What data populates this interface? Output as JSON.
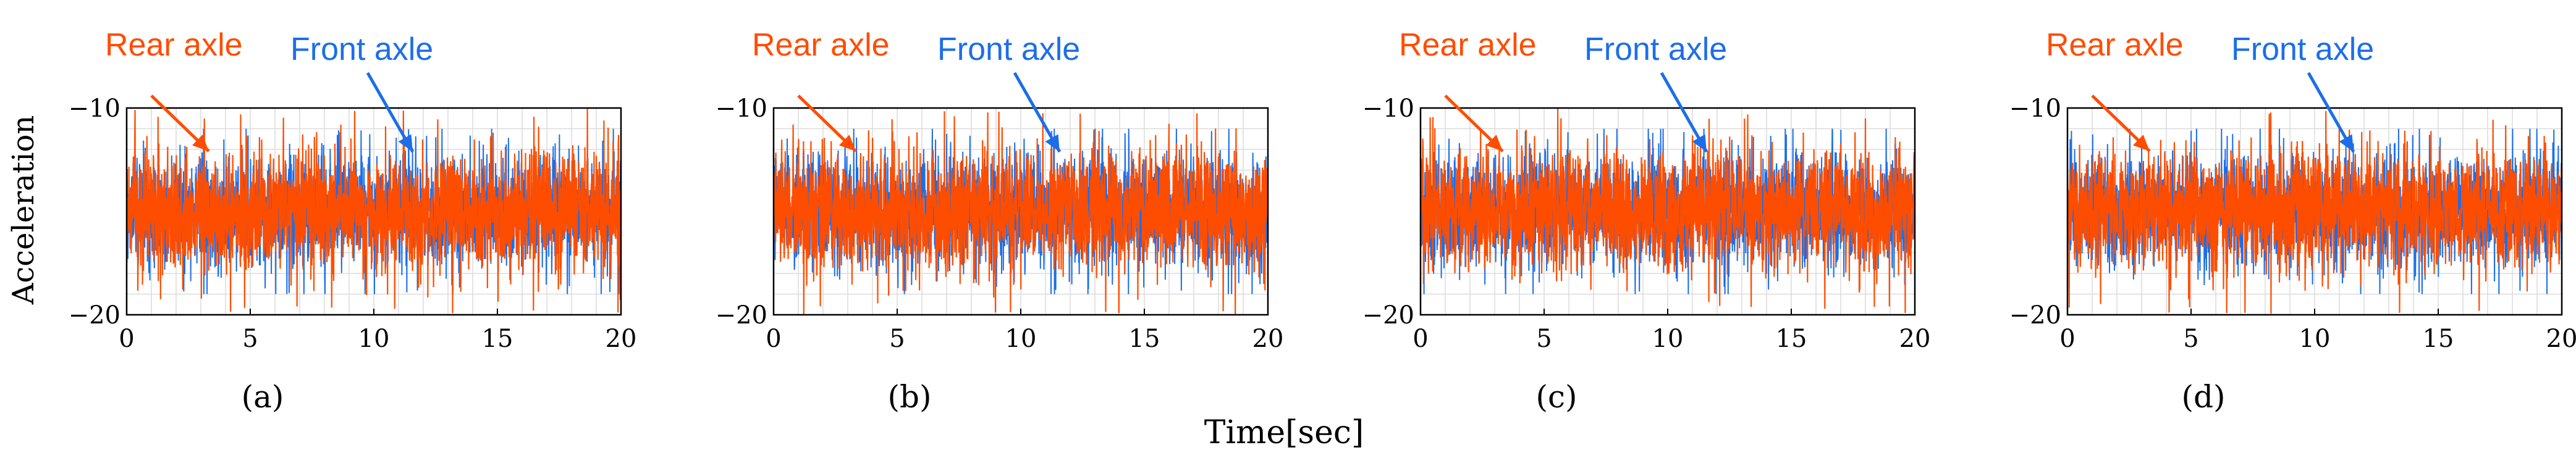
{
  "figure": {
    "ylabel": "Acceleration",
    "xlabel": "Time[sec]",
    "panels": [
      {
        "caption": "(a)",
        "rear_label": "Rear axle",
        "front_label": "Front axle"
      },
      {
        "caption": "(b)",
        "rear_label": "Rear axle",
        "front_label": "Front axle"
      },
      {
        "caption": "(c)",
        "rear_label": "Rear axle",
        "front_label": "Front axle"
      },
      {
        "caption": "(d)",
        "rear_label": "Rear axle",
        "front_label": "Front axle"
      }
    ]
  },
  "colors": {
    "rear": "#ff4d00",
    "front": "#1c6ee8",
    "grid": "#dcdcdc",
    "axis": "#000000"
  },
  "chart_data": [
    {
      "type": "line",
      "xlim": [
        0,
        20
      ],
      "ylim": [
        -20,
        -10
      ],
      "xticks": [
        0,
        5,
        10,
        15,
        20
      ],
      "yticks": [
        -10,
        -20
      ],
      "grid": true,
      "series": [
        {
          "name": "Rear axle",
          "color": "#ff4d00",
          "mean": -15,
          "x_range": [
            0,
            20
          ],
          "y_range": [
            -20,
            -10
          ]
        },
        {
          "name": "Front axle",
          "color": "#1c6ee8",
          "mean": -15,
          "x_range": [
            0,
            20
          ],
          "y_range": [
            -19,
            -11
          ]
        }
      ]
    },
    {
      "type": "line",
      "xlim": [
        0,
        20
      ],
      "ylim": [
        -20,
        -10
      ],
      "xticks": [
        0,
        5,
        10,
        15,
        20
      ],
      "yticks": [
        -10,
        -20
      ],
      "grid": true,
      "series": [
        {
          "name": "Rear axle",
          "color": "#ff4d00",
          "mean": -15,
          "x_range": [
            0,
            20
          ],
          "y_range": [
            -20,
            -10
          ]
        },
        {
          "name": "Front axle",
          "color": "#1c6ee8",
          "mean": -15,
          "x_range": [
            0,
            20
          ],
          "y_range": [
            -19,
            -11
          ]
        }
      ]
    },
    {
      "type": "line",
      "xlim": [
        0,
        20
      ],
      "ylim": [
        -20,
        -10
      ],
      "xticks": [
        0,
        5,
        10,
        15,
        20
      ],
      "yticks": [
        -10,
        -20
      ],
      "grid": true,
      "series": [
        {
          "name": "Rear axle",
          "color": "#ff4d00",
          "mean": -15,
          "x_range": [
            0,
            20
          ],
          "y_range": [
            -20,
            -10
          ]
        },
        {
          "name": "Front axle",
          "color": "#1c6ee8",
          "mean": -15,
          "x_range": [
            0,
            20
          ],
          "y_range": [
            -19,
            -11
          ]
        }
      ]
    },
    {
      "type": "line",
      "xlim": [
        0,
        20
      ],
      "ylim": [
        -20,
        -10
      ],
      "xticks": [
        0,
        5,
        10,
        15,
        20
      ],
      "yticks": [
        -10,
        -20
      ],
      "grid": true,
      "series": [
        {
          "name": "Rear axle",
          "color": "#ff4d00",
          "mean": -15,
          "x_range": [
            0,
            20
          ],
          "y_range": [
            -20,
            -10
          ]
        },
        {
          "name": "Front axle",
          "color": "#1c6ee8",
          "mean": -15,
          "x_range": [
            0,
            20
          ],
          "y_range": [
            -19,
            -11
          ]
        }
      ]
    }
  ]
}
